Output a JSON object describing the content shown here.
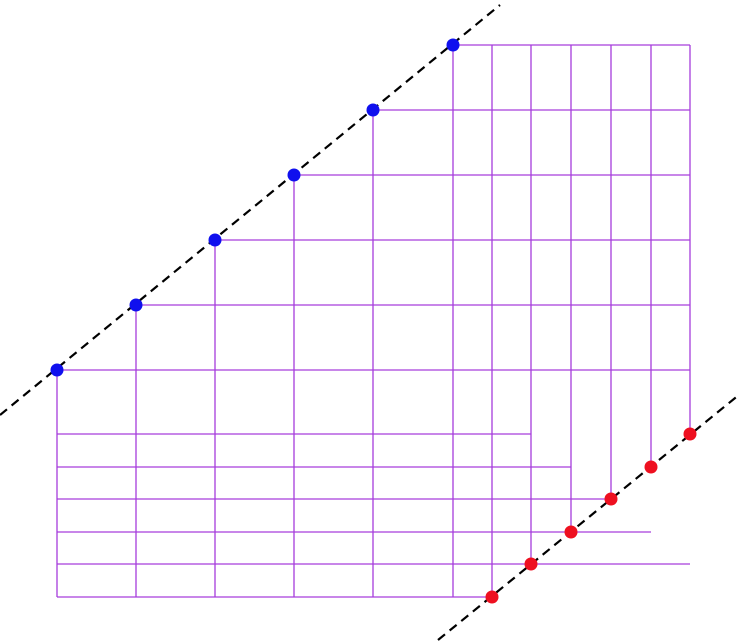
{
  "colors": {
    "background": "#ffffff",
    "grid": "#a63ddc",
    "dashed_line": "#000000",
    "blue_point": "#1010ee",
    "red_point": "#ee1020"
  },
  "diagram": {
    "upper_points_count": 6,
    "lower_points_count": 6,
    "lines": [
      "upper-dashed-line",
      "lower-dashed-line"
    ]
  }
}
